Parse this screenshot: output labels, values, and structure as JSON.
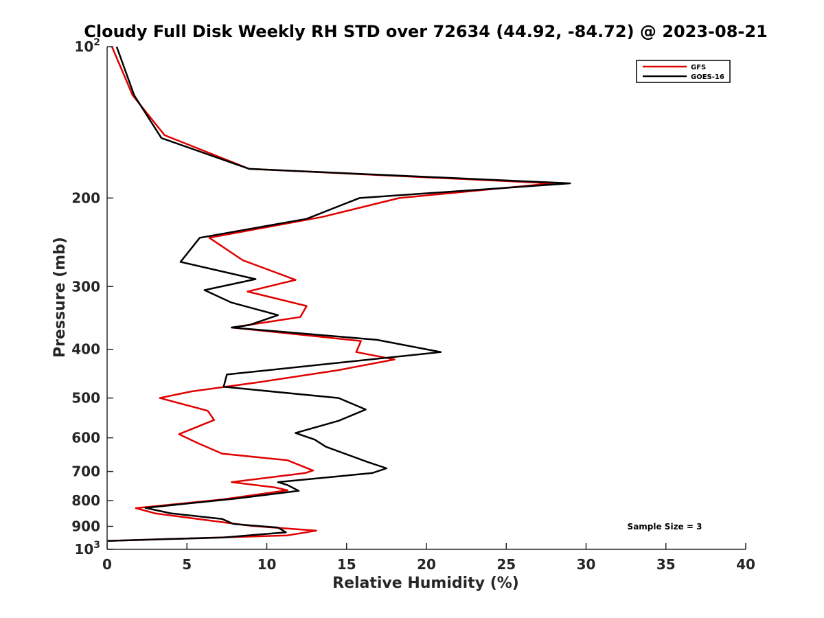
{
  "chart_data": {
    "type": "line",
    "title": "Cloudy Full Disk Weekly RH STD over 72634 (44.92, -84.72) @ 2023-08-21",
    "xlabel": "Relative Humidity (%)",
    "ylabel": "Pressure (mb)",
    "xlim": [
      0,
      40
    ],
    "ylim": [
      100,
      1000
    ],
    "y_scale": "log",
    "y_reversed": true,
    "x_ticks": [
      "0",
      "5",
      "10",
      "15",
      "20",
      "25",
      "30",
      "35",
      "40"
    ],
    "y_ticks": [
      {
        "value": 100,
        "base": "10",
        "exp": "2"
      },
      {
        "value": 200,
        "label": "200"
      },
      {
        "value": 300,
        "label": "300"
      },
      {
        "value": 400,
        "label": "400"
      },
      {
        "value": 500,
        "label": "500"
      },
      {
        "value": 600,
        "label": "600"
      },
      {
        "value": 700,
        "label": "700"
      },
      {
        "value": 800,
        "label": "800"
      },
      {
        "value": 900,
        "label": "900"
      },
      {
        "value": 1000,
        "base": "10",
        "exp": "3"
      }
    ],
    "legend_position": "top-right",
    "annotation": "Sample Size = 3",
    "series": [
      {
        "name": "GFS",
        "color": "#e00000",
        "points": [
          [
            0.3,
            100
          ],
          [
            1.6,
            125
          ],
          [
            3.6,
            150
          ],
          [
            8.9,
            175
          ],
          [
            27.9,
            187
          ],
          [
            18.3,
            200
          ],
          [
            13.5,
            218
          ],
          [
            6.4,
            240
          ],
          [
            8.5,
            266
          ],
          [
            11.8,
            291
          ],
          [
            8.8,
            307
          ],
          [
            12.5,
            328
          ],
          [
            12.1,
            345
          ],
          [
            7.8,
            362
          ],
          [
            15.9,
            385
          ],
          [
            15.6,
            405
          ],
          [
            18.0,
            419
          ],
          [
            14.5,
            440
          ],
          [
            9.5,
            465
          ],
          [
            5.3,
            485
          ],
          [
            3.3,
            500
          ],
          [
            6.3,
            530
          ],
          [
            6.7,
            553
          ],
          [
            4.5,
            590
          ],
          [
            5.7,
            615
          ],
          [
            7.2,
            645
          ],
          [
            11.3,
            665
          ],
          [
            12.3,
            685
          ],
          [
            12.9,
            697
          ],
          [
            12.4,
            705
          ],
          [
            7.8,
            735
          ],
          [
            10.5,
            753
          ],
          [
            11.3,
            763
          ],
          [
            7.3,
            795
          ],
          [
            1.8,
            828
          ],
          [
            3.0,
            848
          ],
          [
            6.0,
            873
          ],
          [
            9.0,
            898
          ],
          [
            13.1,
            918
          ],
          [
            11.3,
            938
          ],
          [
            0.0,
            962
          ]
        ]
      },
      {
        "name": "GOES-16",
        "color": "#000000",
        "points": [
          [
            0.6,
            100
          ],
          [
            1.7,
            125
          ],
          [
            3.4,
            152
          ],
          [
            8.9,
            175
          ],
          [
            29.0,
            187
          ],
          [
            15.8,
            200
          ],
          [
            12.5,
            220
          ],
          [
            5.8,
            240
          ],
          [
            4.6,
            268
          ],
          [
            9.3,
            290
          ],
          [
            6.1,
            305
          ],
          [
            7.8,
            323
          ],
          [
            10.7,
            342
          ],
          [
            8.9,
            358
          ],
          [
            7.8,
            362
          ],
          [
            16.9,
            383
          ],
          [
            20.9,
            405
          ],
          [
            7.5,
            449
          ],
          [
            7.3,
            475
          ],
          [
            14.5,
            500
          ],
          [
            16.2,
            527
          ],
          [
            14.5,
            555
          ],
          [
            11.8,
            587
          ],
          [
            13.0,
            605
          ],
          [
            13.7,
            625
          ],
          [
            16.3,
            670
          ],
          [
            17.5,
            690
          ],
          [
            16.6,
            705
          ],
          [
            10.7,
            735
          ],
          [
            11.3,
            745
          ],
          [
            12.0,
            765
          ],
          [
            8.0,
            793
          ],
          [
            2.4,
            827
          ],
          [
            4.0,
            848
          ],
          [
            7.2,
            870
          ],
          [
            7.9,
            890
          ],
          [
            10.7,
            905
          ],
          [
            11.2,
            925
          ],
          [
            7.3,
            947
          ],
          [
            0.0,
            962
          ]
        ]
      }
    ]
  }
}
